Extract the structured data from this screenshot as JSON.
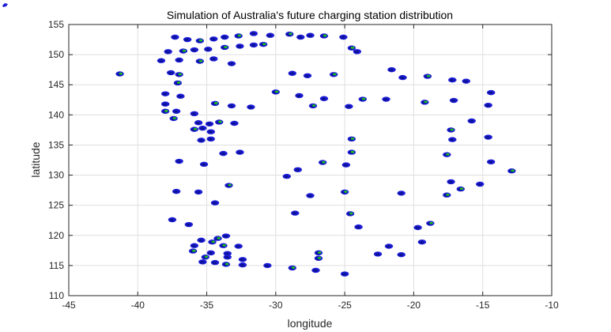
{
  "chart_data": {
    "type": "scatter",
    "title": "Simulation of Australia's future charging station distribution",
    "xlabel": "longitude",
    "ylabel": "latitude",
    "xlim": [
      -45,
      -10
    ],
    "ylim": [
      110,
      155
    ],
    "xticks": [
      -45,
      -40,
      -35,
      -30,
      -25,
      -20,
      -15,
      -10
    ],
    "yticks": [
      110,
      115,
      120,
      125,
      130,
      135,
      140,
      145,
      150,
      155
    ],
    "grid": true,
    "colors": {
      "outer": "#1c1cd6",
      "inner": "#17c117",
      "dark": "#000b66",
      "grid": "#dfdfdf",
      "axis": "#262626"
    },
    "points": [
      [
        -41.3,
        146.8
      ],
      [
        -37.3,
        152.9
      ],
      [
        -36.4,
        152.5
      ],
      [
        -35.5,
        152.3
      ],
      [
        -34.5,
        152.6
      ],
      [
        -33.7,
        152.9
      ],
      [
        -32.7,
        153.1
      ],
      [
        -31.6,
        153.5
      ],
      [
        -30.4,
        153.2
      ],
      [
        -29.0,
        153.4
      ],
      [
        -28.2,
        152.9
      ],
      [
        -27.5,
        153.2
      ],
      [
        -26.5,
        153.1
      ],
      [
        -25.1,
        152.9
      ],
      [
        -37.8,
        150.5
      ],
      [
        -36.7,
        150.6
      ],
      [
        -35.9,
        150.8
      ],
      [
        -34.9,
        150.9
      ],
      [
        -33.7,
        151.2
      ],
      [
        -32.6,
        151.4
      ],
      [
        -31.6,
        151.6
      ],
      [
        -30.9,
        151.7
      ],
      [
        -38.3,
        149.0
      ],
      [
        -37.0,
        149.1
      ],
      [
        -35.5,
        148.9
      ],
      [
        -34.5,
        149.3
      ],
      [
        -33.2,
        148.5
      ],
      [
        -24.5,
        151.1
      ],
      [
        -24.1,
        150.5
      ],
      [
        -37.6,
        147.0
      ],
      [
        -37.0,
        146.7
      ],
      [
        -28.8,
        146.9
      ],
      [
        -27.7,
        146.5
      ],
      [
        -25.8,
        146.7
      ],
      [
        -21.6,
        147.5
      ],
      [
        -20.8,
        146.2
      ],
      [
        -19.0,
        146.4
      ],
      [
        -17.2,
        145.8
      ],
      [
        -16.2,
        145.6
      ],
      [
        -37.1,
        145.3
      ],
      [
        -38.0,
        143.5
      ],
      [
        -36.9,
        143.1
      ],
      [
        -30.0,
        143.8
      ],
      [
        -28.3,
        143.2
      ],
      [
        -26.5,
        142.7
      ],
      [
        -23.7,
        142.6
      ],
      [
        -14.4,
        143.7
      ],
      [
        -38.0,
        141.8
      ],
      [
        -34.4,
        141.9
      ],
      [
        -33.2,
        141.5
      ],
      [
        -31.8,
        141.3
      ],
      [
        -27.3,
        141.5
      ],
      [
        -24.7,
        141.4
      ],
      [
        -22.0,
        142.6
      ],
      [
        -19.2,
        142.1
      ],
      [
        -17.1,
        142.4
      ],
      [
        -14.6,
        141.6
      ],
      [
        -38.0,
        140.6
      ],
      [
        -37.2,
        140.6
      ],
      [
        -35.9,
        140.2
      ],
      [
        -37.4,
        139.4
      ],
      [
        -35.6,
        138.7
      ],
      [
        -34.8,
        138.5
      ],
      [
        -34.1,
        138.8
      ],
      [
        -33.0,
        138.6
      ],
      [
        -15.8,
        139.0
      ],
      [
        -35.9,
        137.6
      ],
      [
        -35.3,
        137.8
      ],
      [
        -34.7,
        137.2
      ],
      [
        -17.3,
        137.5
      ],
      [
        -35.4,
        135.8
      ],
      [
        -34.7,
        136.0
      ],
      [
        -24.5,
        136.0
      ],
      [
        -17.2,
        135.9
      ],
      [
        -14.6,
        136.3
      ],
      [
        -24.5,
        133.8
      ],
      [
        -33.8,
        133.6
      ],
      [
        -32.6,
        133.8
      ],
      [
        -17.6,
        133.4
      ],
      [
        -37.0,
        132.3
      ],
      [
        -35.2,
        131.8
      ],
      [
        -26.6,
        132.1
      ],
      [
        -24.9,
        131.7
      ],
      [
        -14.4,
        132.2
      ],
      [
        -12.9,
        130.7
      ],
      [
        -28.4,
        130.9
      ],
      [
        -29.2,
        129.8
      ],
      [
        -33.4,
        128.3
      ],
      [
        -17.3,
        128.9
      ],
      [
        -15.2,
        128.5
      ],
      [
        -16.6,
        127.7
      ],
      [
        -37.2,
        127.3
      ],
      [
        -35.6,
        127.2
      ],
      [
        -25.0,
        127.2
      ],
      [
        -20.9,
        127.0
      ],
      [
        -27.5,
        126.6
      ],
      [
        -17.6,
        126.7
      ],
      [
        -34.4,
        125.4
      ],
      [
        -28.6,
        123.7
      ],
      [
        -24.6,
        123.6
      ],
      [
        -36.3,
        121.8
      ],
      [
        -37.5,
        122.6
      ],
      [
        -18.8,
        122.0
      ],
      [
        -24.0,
        121.4
      ],
      [
        -19.7,
        121.3
      ],
      [
        -34.2,
        119.5
      ],
      [
        -33.6,
        119.9
      ],
      [
        -35.4,
        119.2
      ],
      [
        -34.6,
        118.9
      ],
      [
        -19.4,
        118.9
      ],
      [
        -35.9,
        118.3
      ],
      [
        -33.8,
        118.3
      ],
      [
        -32.7,
        118.2
      ],
      [
        -21.8,
        118.2
      ],
      [
        -36.0,
        117.4
      ],
      [
        -34.7,
        117.1
      ],
      [
        -33.5,
        117.0
      ],
      [
        -26.9,
        117.1
      ],
      [
        -22.6,
        116.9
      ],
      [
        -20.9,
        116.8
      ],
      [
        -35.1,
        116.4
      ],
      [
        -33.5,
        116.4
      ],
      [
        -32.4,
        116.0
      ],
      [
        -26.9,
        116.2
      ],
      [
        -35.3,
        115.6
      ],
      [
        -34.4,
        115.5
      ],
      [
        -33.6,
        115.2
      ],
      [
        -32.4,
        115.1
      ],
      [
        -30.6,
        115.0
      ],
      [
        -28.8,
        114.6
      ],
      [
        -27.1,
        114.2
      ],
      [
        -25.0,
        113.6
      ]
    ]
  },
  "corner_mark": {
    "icon": "corner-marker-icon"
  }
}
